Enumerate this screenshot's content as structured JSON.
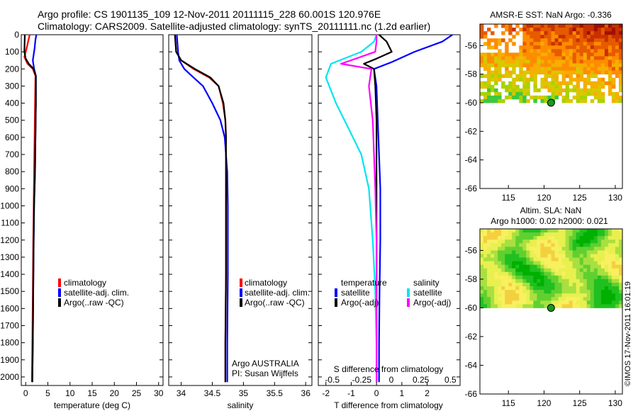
{
  "header": {
    "line1": "Argo profile: CS 1901135_109 12-Nov-2011 20111115_228 60.001S 120.976E",
    "line2": "Climatology: CARS2009. Satellite-adjusted climatology: synTS_20111111.nc (1.2d earlier)"
  },
  "side_text": "©IMOS 17-Nov-2011 16:01:19",
  "chart_data": [
    {
      "id": "temperature",
      "type": "line",
      "xlabel": "temperature (deg C)",
      "xlim": [
        -1,
        31
      ],
      "xticks": [
        0,
        5,
        10,
        15,
        20,
        25,
        30
      ],
      "ylim": [
        2050,
        0
      ],
      "yticks": [
        0,
        100,
        200,
        300,
        400,
        500,
        600,
        700,
        800,
        900,
        1000,
        1100,
        1200,
        1300,
        1400,
        1500,
        1600,
        1700,
        1800,
        1900,
        2000
      ],
      "legend": [
        "climatology",
        "satellite-adj. clim.",
        "Argo(..raw -QC)"
      ],
      "series": [
        {
          "name": "climatology",
          "color": "#ff0000",
          "x": [
            0.9,
            0.2,
            -0.3,
            0.4,
            1.6,
            2.2,
            2.1,
            2.0,
            1.9,
            1.8,
            1.7,
            1.6,
            1.5,
            1.4
          ],
          "y": [
            0,
            80,
            130,
            170,
            200,
            240,
            400,
            600,
            800,
            1000,
            1200,
            1500,
            1800,
            2030
          ]
        },
        {
          "name": "satellite-adj. clim.",
          "color": "#0000ff",
          "x": [
            2.4,
            2.2,
            2.0,
            1.6,
            1.9,
            2.3,
            2.3,
            2.2,
            2.1,
            1.9,
            1.8,
            1.7,
            1.6,
            1.5
          ],
          "y": [
            0,
            30,
            80,
            150,
            200,
            240,
            400,
            600,
            800,
            1000,
            1200,
            1500,
            1800,
            2030
          ]
        },
        {
          "name": "Argo(..raw -QC)",
          "color": "#000000",
          "x": [
            -0.2,
            -0.3,
            0.0,
            0.7,
            1.8,
            2.3,
            2.3,
            2.2,
            2.1,
            1.9,
            1.8,
            1.7,
            1.6,
            1.5
          ],
          "y": [
            0,
            100,
            140,
            170,
            200,
            240,
            400,
            600,
            800,
            1000,
            1200,
            1500,
            1800,
            2030
          ]
        }
      ]
    },
    {
      "id": "salinity",
      "type": "line",
      "xlabel": "salinity",
      "xlim": [
        33.8,
        36.1
      ],
      "xticks": [
        34,
        34.5,
        35,
        35.5,
        36
      ],
      "xticklabels": [
        "34",
        "34.5",
        "35",
        "35.5",
        "36"
      ],
      "ylim": [
        2050,
        0
      ],
      "legend": [
        "climatology",
        "satellite-adj. clim.",
        "Argo(..raw -QC)"
      ],
      "annotation": [
        "Argo AUSTRALIA",
        "PI: Susan Wijffels"
      ],
      "series": [
        {
          "name": "climatology",
          "color": "#ff0000",
          "x": [
            33.9,
            33.92,
            34.0,
            34.2,
            34.45,
            34.6,
            34.67,
            34.71,
            34.72,
            34.72,
            34.72,
            34.72,
            34.71,
            34.71
          ],
          "y": [
            0,
            100,
            150,
            200,
            250,
            300,
            400,
            500,
            600,
            800,
            1000,
            1400,
            1800,
            2030
          ]
        },
        {
          "name": "satellite-adj. clim.",
          "color": "#0000ff",
          "x": [
            33.93,
            33.95,
            33.97,
            34.05,
            34.2,
            34.35,
            34.5,
            34.63,
            34.7,
            34.74,
            34.75,
            34.75,
            34.74,
            34.74
          ],
          "y": [
            0,
            100,
            150,
            200,
            250,
            300,
            400,
            500,
            600,
            800,
            1000,
            1400,
            1800,
            2030
          ]
        },
        {
          "name": "Argo(..raw -QC)",
          "color": "#000000",
          "x": [
            33.9,
            33.92,
            34.0,
            34.22,
            34.47,
            34.6,
            34.68,
            34.71,
            34.72,
            34.72,
            34.72,
            34.72,
            34.71,
            34.71
          ],
          "y": [
            0,
            100,
            150,
            200,
            250,
            300,
            400,
            500,
            600,
            800,
            1000,
            1400,
            1800,
            2030
          ]
        }
      ]
    },
    {
      "id": "difference",
      "type": "line",
      "xlabel": "T difference from climatology",
      "xlabel_top": "S difference from climatology",
      "xlim": [
        -2.3,
        3.3
      ],
      "xticks": [
        -2,
        -1,
        0,
        1,
        2
      ],
      "xticks_top": [
        -0.5,
        -0.25,
        0,
        0.25,
        0.5
      ],
      "xticks_top_labels": [
        "-0.5",
        "-0.25",
        "0",
        "0.25",
        "0.5"
      ],
      "ylim": [
        2050,
        0
      ],
      "legend_headers": [
        "temperature",
        "salinity"
      ],
      "legend": [
        "satellite",
        "Argo(-adj)",
        "satellite",
        "Argo(-adj)"
      ],
      "series": [
        {
          "name": "satellite",
          "color": "#0000ff",
          "x": [
            3.0,
            2.6,
            1.5,
            0.6,
            -0.1,
            0.0,
            0.05,
            0.1,
            0.15,
            0.15,
            0.12,
            0.1,
            0.1
          ],
          "y": [
            0,
            40,
            100,
            160,
            200,
            300,
            500,
            700,
            900,
            1200,
            1500,
            1800,
            2030
          ]
        },
        {
          "name": "Argo(-adj)",
          "color": "#000000",
          "x": [
            0.1,
            0.4,
            0.6,
            0.0,
            -0.5,
            -0.1,
            -0.05,
            0.0,
            0.0,
            0.0,
            0.0,
            0.0,
            0.0
          ],
          "y": [
            0,
            40,
            100,
            140,
            170,
            200,
            300,
            500,
            800,
            1200,
            1500,
            1800,
            2030
          ]
        },
        {
          "name": "satellite",
          "color": "#00e5ee",
          "x": [
            0.0,
            -0.1,
            -0.6,
            -1.8,
            -2.0,
            -1.6,
            -1.1,
            -0.6,
            -0.3,
            -0.15,
            -0.05,
            0.0,
            0.0
          ],
          "y": [
            0,
            40,
            100,
            170,
            250,
            400,
            550,
            700,
            900,
            1200,
            1500,
            1800,
            2030
          ]
        },
        {
          "name": "Argo(-adj)",
          "color": "#ff00ff",
          "x": [
            0.0,
            0.0,
            -0.05,
            -1.4,
            -0.2,
            -0.3,
            -0.15,
            -0.1,
            -0.05,
            0.0,
            0.0,
            0.0,
            0.0
          ],
          "y": [
            0,
            40,
            100,
            170,
            200,
            300,
            500,
            700,
            900,
            1200,
            1500,
            1800,
            2030
          ]
        }
      ]
    },
    {
      "id": "sst_map",
      "type": "heatmap",
      "title": "AMSR-E SST: NaN Argo: -0.336",
      "xlim": [
        111,
        131
      ],
      "ylim": [
        -66,
        -54.5
      ],
      "xticks": [
        115,
        120,
        125,
        130
      ],
      "yticks": [
        -56,
        -58,
        -60,
        -62,
        -64,
        -66
      ],
      "marker": {
        "lon": 120.976,
        "lat": -60.001
      },
      "colors": [
        "#a01000",
        "#c83000",
        "#e65a00",
        "#ff8c00",
        "#f6ae00",
        "#d8c800",
        "#a8d200",
        "#3cc840"
      ]
    },
    {
      "id": "sla_map",
      "type": "heatmap",
      "title": "Altim. SLA: NaN",
      "subtitle": "Argo h1000: 0.02 h2000: 0.021",
      "xlim": [
        111,
        131
      ],
      "ylim": [
        -66,
        -54.5
      ],
      "xticks": [
        115,
        120,
        125,
        130
      ],
      "yticks": [
        -56,
        -58,
        -60,
        -62,
        -64,
        -66
      ],
      "marker": {
        "lon": 120.976,
        "lat": -60.001
      },
      "colors": [
        "#00b000",
        "#20c020",
        "#60d030",
        "#a8e040",
        "#e8f050",
        "#f8f060",
        "#f4d040"
      ]
    }
  ]
}
